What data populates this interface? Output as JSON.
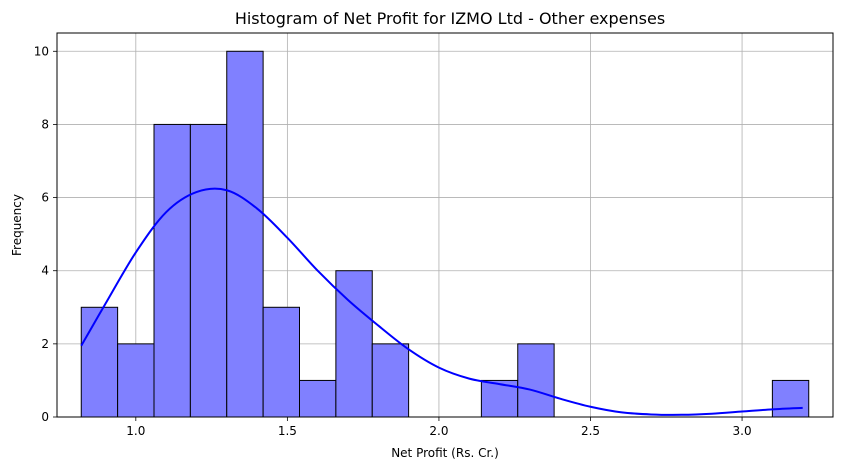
{
  "chart_data": {
    "type": "bar",
    "title": "Histogram of Net Profit for IZMO Ltd - Other expenses",
    "xlabel": "Net Profit (Rs. Cr.)",
    "ylabel": "Frequency",
    "bins": [
      {
        "from": 0.82,
        "to": 0.94,
        "count": 3
      },
      {
        "from": 0.94,
        "to": 1.06,
        "count": 2
      },
      {
        "from": 1.06,
        "to": 1.18,
        "count": 8
      },
      {
        "from": 1.18,
        "to": 1.3,
        "count": 8
      },
      {
        "from": 1.3,
        "to": 1.42,
        "count": 10
      },
      {
        "from": 1.42,
        "to": 1.54,
        "count": 3
      },
      {
        "from": 1.54,
        "to": 1.66,
        "count": 1
      },
      {
        "from": 1.66,
        "to": 1.78,
        "count": 4
      },
      {
        "from": 1.78,
        "to": 1.9,
        "count": 2
      },
      {
        "from": 1.9,
        "to": 2.02,
        "count": 0
      },
      {
        "from": 2.02,
        "to": 2.14,
        "count": 0
      },
      {
        "from": 2.14,
        "to": 2.26,
        "count": 1
      },
      {
        "from": 2.26,
        "to": 2.38,
        "count": 2
      },
      {
        "from": 2.38,
        "to": 2.5,
        "count": 0
      },
      {
        "from": 2.5,
        "to": 2.62,
        "count": 0
      },
      {
        "from": 2.62,
        "to": 2.74,
        "count": 0
      },
      {
        "from": 2.74,
        "to": 2.86,
        "count": 0
      },
      {
        "from": 2.86,
        "to": 2.98,
        "count": 0
      },
      {
        "from": 2.98,
        "to": 3.1,
        "count": 0
      },
      {
        "from": 3.1,
        "to": 3.22,
        "count": 1
      }
    ],
    "kde": {
      "x": [
        0.82,
        0.9,
        1.0,
        1.1,
        1.2,
        1.3,
        1.4,
        1.5,
        1.6,
        1.7,
        1.8,
        1.9,
        2.0,
        2.1,
        2.2,
        2.3,
        2.4,
        2.5,
        2.6,
        2.7,
        2.8,
        2.9,
        3.0,
        3.1,
        3.2
      ],
      "y": [
        1.95,
        3.1,
        4.5,
        5.6,
        6.15,
        6.2,
        5.7,
        4.9,
        4.0,
        3.2,
        2.5,
        1.85,
        1.35,
        1.05,
        0.9,
        0.75,
        0.5,
        0.28,
        0.13,
        0.07,
        0.06,
        0.09,
        0.15,
        0.21,
        0.25
      ]
    },
    "xticks": [
      "1.0",
      "1.5",
      "2.0",
      "2.5",
      "3.0"
    ],
    "yticks": [
      "0",
      "2",
      "4",
      "6",
      "8",
      "10"
    ],
    "xlim": [
      0.74,
      3.3
    ],
    "ylim": [
      0,
      10.5
    ],
    "grid": true,
    "bar_color": "#8080ff",
    "bar_edge_color": "#000000",
    "kde_color": "#0000ff"
  }
}
